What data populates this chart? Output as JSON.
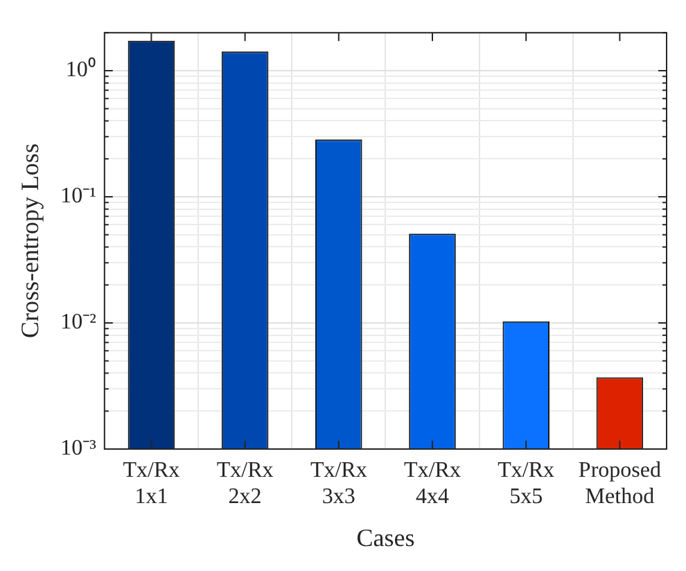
{
  "chart_data": {
    "type": "bar",
    "xlabel": "Cases",
    "ylabel": "Cross-entropy Loss",
    "categories": [
      "Tx/Rx 1x1",
      "Tx/Rx 2x2",
      "Tx/Rx 3x3",
      "Tx/Rx 4x4",
      "Tx/Rx 5x5",
      "Proposed Method"
    ],
    "values": [
      1.73,
      1.42,
      0.285,
      0.051,
      0.0103,
      0.0037
    ],
    "colors": [
      "#00317a",
      "#0048b0",
      "#0057cc",
      "#0062e6",
      "#0a72ff",
      "#dd2200"
    ],
    "log": true,
    "ylim": [
      0.001,
      2
    ],
    "yticks": [
      {
        "value": 0.001,
        "label": "10⁻³"
      },
      {
        "value": 0.01,
        "label": "10⁻²"
      },
      {
        "value": 0.1,
        "label": "10⁻¹"
      },
      {
        "value": 1,
        "label": "10⁰"
      }
    ],
    "grid": true,
    "legend": false
  }
}
